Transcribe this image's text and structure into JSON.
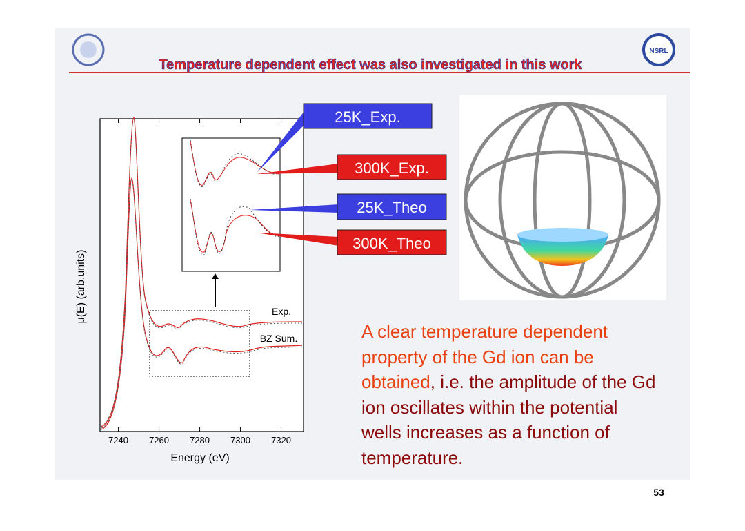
{
  "header": {
    "title": "Temperature dependent effect was also investigated in this work"
  },
  "chart": {
    "xlabel": "Energy (eV)",
    "ylabel": "μ(E) (arb.units)",
    "xlim": [
      7231,
      7331
    ],
    "xticks": [
      7240,
      7260,
      7280,
      7300,
      7320
    ],
    "curve_labels": [
      "Exp.",
      "BZ Sum."
    ]
  },
  "callouts": [
    "25K_Exp.",
    "300K_Exp.",
    "25K_Theo",
    "300K_Theo"
  ],
  "paragraph": {
    "highlight": "A clear temperature dependent property of the Gd ion can be obtained",
    "rest": ", i.e. the amplitude of the Gd ion oscillates within the potential wells increases as a function of temperature."
  },
  "page_number": "53"
}
